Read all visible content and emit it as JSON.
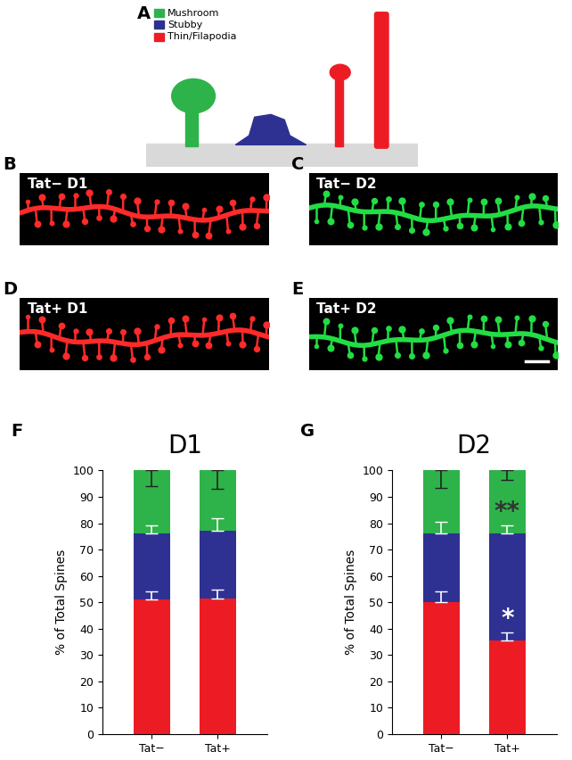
{
  "schematic": {
    "panel": "A",
    "legend": [
      {
        "name": "Mushroom",
        "color": "#2db34a"
      },
      {
        "name": "Stubby",
        "color": "#2e3192"
      },
      {
        "name": "Thin/Filapodia",
        "color": "#ed1c24"
      }
    ]
  },
  "images": [
    {
      "panel": "B",
      "label": "Tat− D1",
      "color": "#ff2a2a"
    },
    {
      "panel": "C",
      "label": "Tat− D2",
      "color": "#22dd44"
    },
    {
      "panel": "D",
      "label": "Tat+ D1",
      "color": "#ff2a2a"
    },
    {
      "panel": "E",
      "label": "Tat+ D2",
      "color": "#22dd44"
    }
  ],
  "chart_data": [
    {
      "type": "bar",
      "stacked": true,
      "panel": "F",
      "title": "D1",
      "ylabel": "% of Total Spines",
      "categories": [
        "Tat−",
        "Tat+"
      ],
      "ylim": [
        0,
        100
      ],
      "yticks": [
        0,
        10,
        20,
        30,
        40,
        50,
        60,
        70,
        80,
        90,
        100
      ],
      "series": [
        {
          "color": "#ed1c24",
          "values": [
            51,
            51.3
          ],
          "errors": [
            3,
            3.5
          ]
        },
        {
          "color": "#2e3192",
          "values": [
            25,
            25.7
          ],
          "errors": [
            3,
            5
          ]
        },
        {
          "color": "#2db34a",
          "values": [
            24,
            23
          ],
          "errors": [
            6,
            7
          ]
        }
      ],
      "annotations": []
    },
    {
      "type": "bar",
      "stacked": true,
      "panel": "G",
      "title": "D2",
      "ylabel": "% of Total Spines",
      "categories": [
        "Tat−",
        "Tat+"
      ],
      "ylim": [
        0,
        100
      ],
      "yticks": [
        0,
        10,
        20,
        30,
        40,
        50,
        60,
        70,
        80,
        90,
        100
      ],
      "series": [
        {
          "color": "#ed1c24",
          "values": [
            50,
            35.5
          ],
          "errors": [
            4,
            3
          ]
        },
        {
          "color": "#2e3192",
          "values": [
            26,
            40.5
          ],
          "errors": [
            4.5,
            3
          ]
        },
        {
          "color": "#2db34a",
          "values": [
            24,
            24
          ],
          "errors": [
            6.5,
            3.5
          ]
        }
      ],
      "annotations": [
        {
          "category": "Tat+",
          "series": 2,
          "text": "**",
          "color": "#333333"
        },
        {
          "category": "Tat+",
          "series": 1,
          "text": "*",
          "color": "#ffffff"
        }
      ]
    }
  ]
}
